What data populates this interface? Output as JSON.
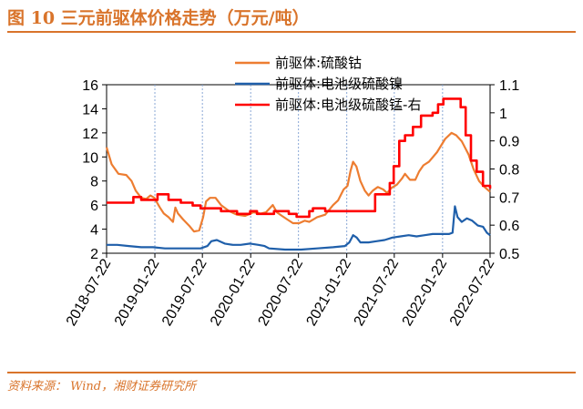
{
  "header": {
    "title": "图 10 三元前驱体价格走势（万元/吨）"
  },
  "footer": {
    "source": "资料来源： Wind，湘财证券研究所"
  },
  "chart_data": {
    "type": "line",
    "left_axis": {
      "min": 2,
      "max": 16,
      "ticks": [
        2,
        4,
        6,
        8,
        10,
        12,
        14,
        16
      ]
    },
    "right_axis": {
      "min": 0.5,
      "max": 1.1,
      "ticks": [
        0.5,
        0.6,
        0.7,
        0.8,
        0.9,
        1,
        1.1
      ]
    },
    "x_range": [
      "2018-07-22",
      "2022-07-22"
    ],
    "x_ticks": [
      "2018-07-22",
      "2019-01-22",
      "2019-07-22",
      "2020-01-22",
      "2020-07-22",
      "2021-01-22",
      "2021-07-22",
      "2022-01-22",
      "2022-07-22"
    ],
    "grid": "x-only",
    "legend_position": "top-right",
    "series": [
      {
        "name": "前驱体:硫酸钴",
        "axis": "left",
        "color": "#ed7d31",
        "points": [
          [
            "2018-07-22",
            10.8
          ],
          [
            "2018-08-10",
            9.4
          ],
          [
            "2018-09-05",
            8.6
          ],
          [
            "2018-10-05",
            8.5
          ],
          [
            "2018-10-25",
            8.0
          ],
          [
            "2018-11-10",
            7.2
          ],
          [
            "2018-12-01",
            6.6
          ],
          [
            "2018-12-20",
            6.5
          ],
          [
            "2019-01-05",
            6.8
          ],
          [
            "2019-01-20",
            6.6
          ],
          [
            "2019-02-10",
            5.8
          ],
          [
            "2019-02-25",
            5.3
          ],
          [
            "2019-03-15",
            5.0
          ],
          [
            "2019-04-01",
            4.6
          ],
          [
            "2019-04-10",
            5.8
          ],
          [
            "2019-04-20",
            5.3
          ],
          [
            "2019-05-10",
            4.8
          ],
          [
            "2019-06-01",
            4.3
          ],
          [
            "2019-06-20",
            3.8
          ],
          [
            "2019-07-10",
            3.9
          ],
          [
            "2019-07-25",
            5.0
          ],
          [
            "2019-08-05",
            6.3
          ],
          [
            "2019-08-20",
            6.6
          ],
          [
            "2019-09-10",
            6.6
          ],
          [
            "2019-10-01",
            6.0
          ],
          [
            "2019-11-01",
            5.5
          ],
          [
            "2019-12-01",
            5.2
          ],
          [
            "2020-01-01",
            5.1
          ],
          [
            "2020-02-01",
            5.4
          ],
          [
            "2020-03-01",
            5.3
          ],
          [
            "2020-03-20",
            5.4
          ],
          [
            "2020-04-15",
            6.0
          ],
          [
            "2020-05-01",
            5.4
          ],
          [
            "2020-05-20",
            5.1
          ],
          [
            "2020-06-10",
            4.8
          ],
          [
            "2020-07-01",
            4.5
          ],
          [
            "2020-07-25",
            4.5
          ],
          [
            "2020-08-15",
            4.7
          ],
          [
            "2020-09-01",
            4.6
          ],
          [
            "2020-10-01",
            5.0
          ],
          [
            "2020-11-01",
            5.2
          ],
          [
            "2020-12-01",
            6.0
          ],
          [
            "2020-12-20",
            6.4
          ],
          [
            "2021-01-10",
            7.3
          ],
          [
            "2021-01-25",
            7.6
          ],
          [
            "2021-02-05",
            8.8
          ],
          [
            "2021-02-15",
            9.6
          ],
          [
            "2021-02-28",
            9.2
          ],
          [
            "2021-03-15",
            8.0
          ],
          [
            "2021-04-01",
            7.2
          ],
          [
            "2021-04-15",
            6.8
          ],
          [
            "2021-05-01",
            7.2
          ],
          [
            "2021-05-20",
            7.5
          ],
          [
            "2021-06-10",
            7.3
          ],
          [
            "2021-06-25",
            7.0
          ],
          [
            "2021-07-10",
            7.4
          ],
          [
            "2021-08-01",
            7.7
          ],
          [
            "2021-08-20",
            8.2
          ],
          [
            "2021-09-01",
            8.6
          ],
          [
            "2021-09-20",
            8.1
          ],
          [
            "2021-10-10",
            8.1
          ],
          [
            "2021-10-25",
            8.8
          ],
          [
            "2021-11-10",
            9.3
          ],
          [
            "2021-12-01",
            9.6
          ],
          [
            "2022-01-01",
            10.4
          ],
          [
            "2022-02-01",
            11.5
          ],
          [
            "2022-02-25",
            12.0
          ],
          [
            "2022-03-15",
            11.8
          ],
          [
            "2022-04-05",
            11.3
          ],
          [
            "2022-05-01",
            10.2
          ],
          [
            "2022-05-20",
            9.0
          ],
          [
            "2022-06-10",
            8.0
          ],
          [
            "2022-07-01",
            7.5
          ],
          [
            "2022-07-22",
            7.1
          ]
        ]
      },
      {
        "name": "前驱体:电池级硫酸镍",
        "axis": "left",
        "color": "#1f5faa",
        "points": [
          [
            "2018-07-22",
            2.7
          ],
          [
            "2018-09-01",
            2.7
          ],
          [
            "2018-10-15",
            2.6
          ],
          [
            "2018-12-01",
            2.5
          ],
          [
            "2019-01-15",
            2.5
          ],
          [
            "2019-03-01",
            2.4
          ],
          [
            "2019-05-01",
            2.4
          ],
          [
            "2019-07-15",
            2.4
          ],
          [
            "2019-08-10",
            2.6
          ],
          [
            "2019-08-25",
            3.0
          ],
          [
            "2019-09-15",
            3.1
          ],
          [
            "2019-10-15",
            2.8
          ],
          [
            "2019-11-15",
            2.7
          ],
          [
            "2019-12-15",
            2.7
          ],
          [
            "2020-01-20",
            2.8
          ],
          [
            "2020-02-20",
            2.7
          ],
          [
            "2020-03-15",
            2.6
          ],
          [
            "2020-04-01",
            2.4
          ],
          [
            "2020-06-01",
            2.3
          ],
          [
            "2020-08-01",
            2.3
          ],
          [
            "2020-10-01",
            2.4
          ],
          [
            "2020-12-01",
            2.5
          ],
          [
            "2021-01-15",
            2.6
          ],
          [
            "2021-02-01",
            2.9
          ],
          [
            "2021-02-15",
            3.5
          ],
          [
            "2021-03-01",
            3.3
          ],
          [
            "2021-03-15",
            2.9
          ],
          [
            "2021-04-15",
            2.9
          ],
          [
            "2021-05-15",
            3.0
          ],
          [
            "2021-06-15",
            3.1
          ],
          [
            "2021-07-15",
            3.3
          ],
          [
            "2021-08-15",
            3.4
          ],
          [
            "2021-09-15",
            3.5
          ],
          [
            "2021-10-15",
            3.4
          ],
          [
            "2021-11-15",
            3.5
          ],
          [
            "2021-12-15",
            3.6
          ],
          [
            "2022-01-15",
            3.6
          ],
          [
            "2022-02-15",
            3.6
          ],
          [
            "2022-03-01",
            3.7
          ],
          [
            "2022-03-10",
            5.9
          ],
          [
            "2022-03-20",
            5.0
          ],
          [
            "2022-04-05",
            4.6
          ],
          [
            "2022-04-25",
            4.9
          ],
          [
            "2022-05-15",
            4.7
          ],
          [
            "2022-06-05",
            4.3
          ],
          [
            "2022-06-25",
            4.2
          ],
          [
            "2022-07-10",
            3.7
          ],
          [
            "2022-07-22",
            3.5
          ]
        ]
      },
      {
        "name": "前驱体:电池级硫酸锰-右",
        "axis": "right",
        "color": "#ff0000",
        "step": true,
        "points": [
          [
            "2018-07-22",
            0.68
          ],
          [
            "2018-11-01",
            0.7
          ],
          [
            "2018-12-01",
            0.69
          ],
          [
            "2019-02-01",
            0.71
          ],
          [
            "2019-03-15",
            0.69
          ],
          [
            "2019-05-01",
            0.68
          ],
          [
            "2019-06-15",
            0.67
          ],
          [
            "2019-07-15",
            0.66
          ],
          [
            "2019-10-01",
            0.65
          ],
          [
            "2019-12-01",
            0.64
          ],
          [
            "2020-01-20",
            0.65
          ],
          [
            "2020-02-15",
            0.64
          ],
          [
            "2020-04-20",
            0.65
          ],
          [
            "2020-06-15",
            0.64
          ],
          [
            "2020-07-15",
            0.63
          ],
          [
            "2020-09-01",
            0.65
          ],
          [
            "2020-09-15",
            0.66
          ],
          [
            "2020-11-01",
            0.65
          ],
          [
            "2021-04-15",
            0.65
          ],
          [
            "2021-05-10",
            0.71
          ],
          [
            "2021-07-05",
            0.75
          ],
          [
            "2021-07-20",
            0.81
          ],
          [
            "2021-08-10",
            0.9
          ],
          [
            "2021-09-01",
            0.92
          ],
          [
            "2021-10-01",
            0.95
          ],
          [
            "2021-11-01",
            0.99
          ],
          [
            "2021-12-15",
            1.0
          ],
          [
            "2022-01-05",
            1.03
          ],
          [
            "2022-01-25",
            1.05
          ],
          [
            "2022-04-01",
            1.02
          ],
          [
            "2022-04-20",
            0.92
          ],
          [
            "2022-05-10",
            0.83
          ],
          [
            "2022-06-01",
            0.79
          ],
          [
            "2022-06-25",
            0.74
          ],
          [
            "2022-07-22",
            0.73
          ]
        ]
      }
    ]
  }
}
